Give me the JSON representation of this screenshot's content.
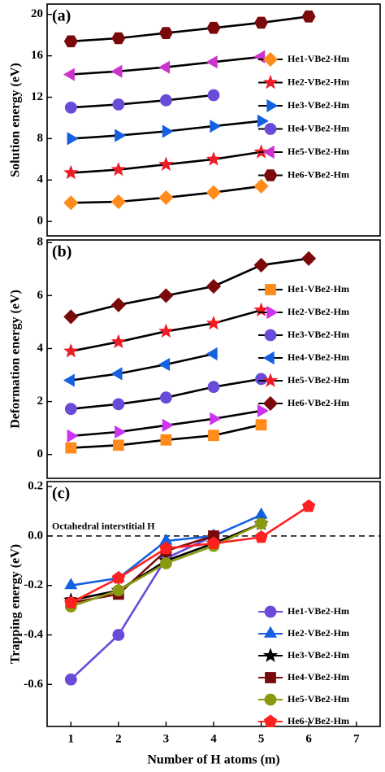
{
  "chart_data": [
    {
      "type": "line",
      "panel_label": "(a)",
      "ylabel": "Solution energy (eV)",
      "x": [
        1,
        2,
        3,
        4,
        5,
        6
      ],
      "xlim": [
        0.5,
        7.5
      ],
      "ylim": [
        -1.4,
        21
      ],
      "yticks": [
        0,
        4,
        8,
        12,
        16,
        20
      ],
      "legend": "right",
      "series": [
        {
          "name": "He1-VBe2-Hm",
          "color": "#ff8c1a",
          "line_color": "#000000",
          "marker": "diamond",
          "values": [
            1.8,
            1.9,
            2.3,
            2.8,
            3.4,
            null
          ]
        },
        {
          "name": "He2-VBe2-Hm",
          "color": "#ee1c25",
          "line_color": "#000000",
          "marker": "star",
          "values": [
            4.7,
            5.0,
            5.5,
            6.0,
            6.7,
            null
          ]
        },
        {
          "name": "He3-VBe2-Hm",
          "color": "#1560e0",
          "line_color": "#000000",
          "marker": "triangle-right",
          "values": [
            8.0,
            8.3,
            8.7,
            9.2,
            9.7,
            null
          ]
        },
        {
          "name": "He4-VBe2-Hm",
          "color": "#6a4bd8",
          "line_color": "#000000",
          "marker": "circle",
          "values": [
            11.0,
            11.3,
            11.7,
            12.2,
            null,
            null
          ]
        },
        {
          "name": "He5-VBe2-Hm",
          "color": "#cc33cc",
          "line_color": "#000000",
          "marker": "triangle-left",
          "values": [
            14.2,
            14.5,
            14.9,
            15.4,
            15.9,
            null
          ]
        },
        {
          "name": "He6-VBe2-Hm",
          "color": "#7a0a0a",
          "line_color": "#000000",
          "marker": "hexagon",
          "values": [
            17.4,
            17.7,
            18.2,
            18.7,
            19.2,
            19.8
          ]
        }
      ]
    },
    {
      "type": "line",
      "panel_label": "(b)",
      "ylabel": "Deformation energy (eV)",
      "x": [
        1,
        2,
        3,
        4,
        5,
        6
      ],
      "xlim": [
        0.5,
        7.5
      ],
      "ylim": [
        -0.9,
        8.1
      ],
      "yticks": [
        0,
        2,
        4,
        6,
        8
      ],
      "legend": "right",
      "series": [
        {
          "name": "He1-VBe2-Hm",
          "color": "#ff8c1a",
          "line_color": "#000000",
          "marker": "square",
          "values": [
            0.25,
            0.35,
            0.55,
            0.72,
            1.12,
            null
          ]
        },
        {
          "name": "He2-VBe2-Hm",
          "color": "#cc33ee",
          "line_color": "#000000",
          "marker": "triangle-right",
          "values": [
            0.7,
            0.85,
            1.1,
            1.35,
            1.65,
            null
          ]
        },
        {
          "name": "He3-VBe2-Hm",
          "color": "#6a4bd8",
          "line_color": "#000000",
          "marker": "circle",
          "values": [
            1.72,
            1.9,
            2.15,
            2.55,
            2.85,
            null
          ]
        },
        {
          "name": "He4-VBe2-Hm",
          "color": "#1560e0",
          "line_color": "#000000",
          "marker": "triangle-left",
          "values": [
            2.8,
            3.05,
            3.4,
            3.8,
            null,
            null
          ]
        },
        {
          "name": "He5-VBe2-Hm",
          "color": "#ee1c25",
          "line_color": "#000000",
          "marker": "star",
          "values": [
            3.9,
            4.25,
            4.65,
            4.95,
            5.45,
            null
          ]
        },
        {
          "name": "He6-VBe2-Hm",
          "color": "#7a0a0a",
          "line_color": "#000000",
          "marker": "diamond",
          "values": [
            5.2,
            5.65,
            6.0,
            6.35,
            7.15,
            7.4
          ]
        }
      ]
    },
    {
      "type": "line",
      "panel_label": "(c)",
      "ylabel": "Trapping energy (eV)",
      "xlabel": "Number of H atoms (m)",
      "annotation": "Octahedral interstitial H",
      "reference_line": 0,
      "x": [
        1,
        2,
        3,
        4,
        5,
        6
      ],
      "xlim": [
        0.5,
        7.5
      ],
      "xticks": [
        1,
        2,
        3,
        4,
        5,
        6,
        7
      ],
      "ylim": [
        -0.77,
        0.22
      ],
      "yticks": [
        -0.6,
        -0.4,
        -0.2,
        {
          "value": 0,
          "label": "0.0"
        },
        0.2
      ],
      "legend": "right",
      "series": [
        {
          "name": "He1-VBe2-Hm",
          "color": "#6a4bd8",
          "line_color": "#6a4bd8",
          "marker": "circle",
          "values": [
            -0.58,
            -0.4,
            -0.09,
            0.0,
            null,
            null
          ]
        },
        {
          "name": "He2-VBe2-Hm",
          "color": "#1560e0",
          "line_color": "#1560e0",
          "marker": "triangle-up",
          "values": [
            -0.2,
            -0.17,
            -0.02,
            0.0,
            0.085,
            null
          ]
        },
        {
          "name": "He3-VBe2-Hm",
          "color": "#000000",
          "line_color": "#000000",
          "marker": "star",
          "values": [
            -0.26,
            -0.22,
            -0.1,
            -0.03,
            0.05,
            null
          ]
        },
        {
          "name": "He4-VBe2-Hm",
          "color": "#7a0a0a",
          "line_color": "#7a0a0a",
          "marker": "square",
          "values": [
            -0.27,
            -0.235,
            -0.06,
            0.0,
            null,
            null
          ]
        },
        {
          "name": "He5-VBe2-Hm",
          "color": "#8a9a10",
          "line_color": "#8a9a10",
          "marker": "circle",
          "values": [
            -0.285,
            -0.22,
            -0.11,
            -0.04,
            0.05,
            null
          ]
        },
        {
          "name": "He6-VBe2-Hm",
          "color": "#ff2020",
          "line_color": "#ff2020",
          "marker": "pentagon",
          "values": [
            -0.27,
            -0.17,
            -0.05,
            -0.03,
            -0.005,
            0.12
          ]
        }
      ]
    }
  ]
}
